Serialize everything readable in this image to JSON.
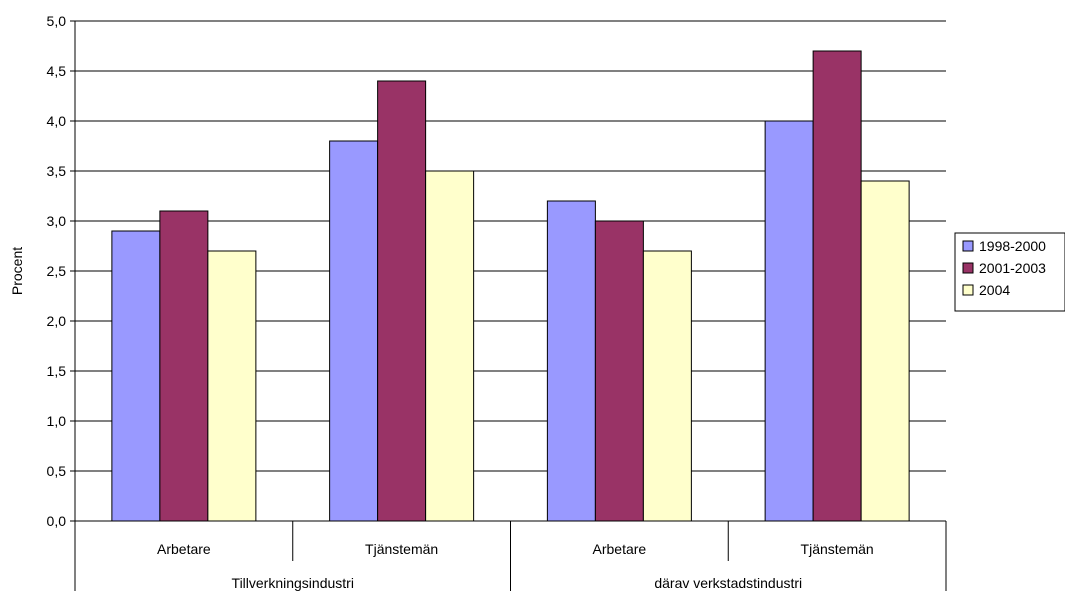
{
  "chart_data": {
    "type": "bar",
    "ylabel": "Procent",
    "ylim": [
      0,
      5
    ],
    "y_ticks": [
      "0,0",
      "0,5",
      "1,0",
      "1,5",
      "2,0",
      "2,5",
      "3,0",
      "3,5",
      "4,0",
      "4,5",
      "5,0"
    ],
    "grid": true,
    "legend_position": "right",
    "groups": [
      {
        "label": "Tillverkningsindustri",
        "categories": [
          "Arbetare",
          "Tjänstemän"
        ]
      },
      {
        "label": "därav verkstadstindustri",
        "categories": [
          "Arbetare",
          "Tjänstemän"
        ]
      }
    ],
    "series": [
      {
        "name": "1998-2000",
        "color": "#9999ff",
        "values": [
          2.9,
          3.8,
          3.2,
          4.0
        ]
      },
      {
        "name": "2001-2003",
        "color": "#993366",
        "values": [
          3.1,
          4.4,
          3.0,
          4.7
        ]
      },
      {
        "name": "2004",
        "color": "#ffffcc",
        "values": [
          2.7,
          3.5,
          2.7,
          3.4
        ]
      }
    ]
  }
}
